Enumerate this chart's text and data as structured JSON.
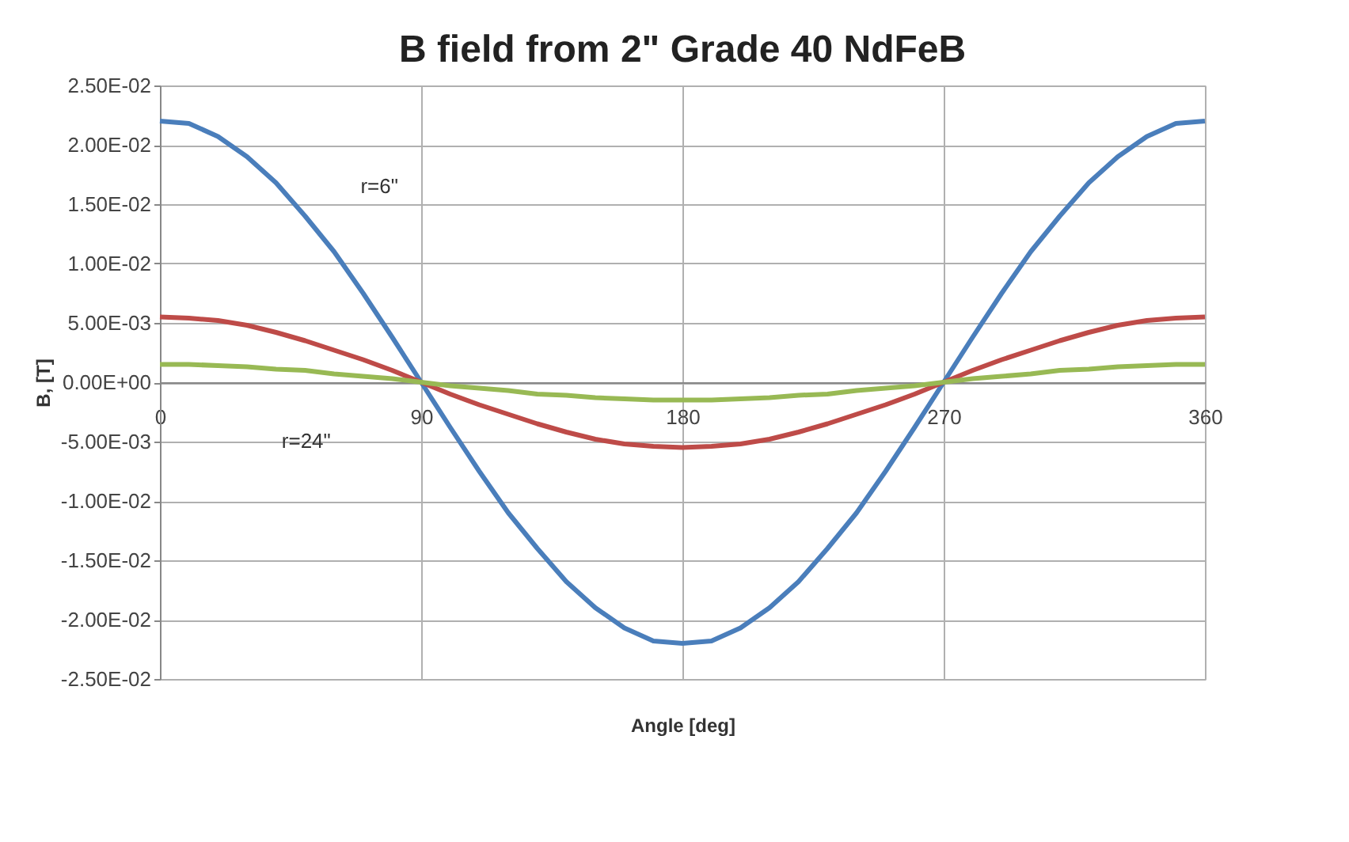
{
  "chart_data": {
    "type": "line",
    "title": "B field from 2\" Grade 40 NdFeB",
    "xlabel": "Angle [deg]",
    "ylabel": "B, [T]",
    "x": [
      0,
      10,
      20,
      30,
      40,
      50,
      60,
      70,
      80,
      90,
      100,
      110,
      120,
      130,
      140,
      150,
      160,
      170,
      180,
      190,
      200,
      210,
      220,
      230,
      240,
      250,
      260,
      270,
      280,
      290,
      300,
      310,
      320,
      330,
      340,
      350,
      360
    ],
    "series": [
      {
        "color": "#4a7ebb",
        "values": [
          0.022,
          0.0218,
          0.0207,
          0.019,
          0.0168,
          0.014,
          0.011,
          0.0075,
          0.0038,
          0,
          -0.0038,
          -0.0075,
          -0.011,
          -0.014,
          -0.0168,
          -0.019,
          -0.0207,
          -0.0218,
          -0.022,
          -0.0218,
          -0.0207,
          -0.019,
          -0.0168,
          -0.014,
          -0.011,
          -0.0075,
          -0.0038,
          0,
          0.0038,
          0.0075,
          0.011,
          0.014,
          0.0168,
          0.019,
          0.0207,
          0.0218,
          0.022
        ]
      },
      {
        "color": "#be4b48",
        "values": [
          0.0055,
          0.0054,
          0.0052,
          0.0048,
          0.0042,
          0.0035,
          0.0027,
          0.0019,
          0.001,
          0,
          -0.001,
          -0.0019,
          -0.0027,
          -0.0035,
          -0.0042,
          -0.0048,
          -0.0052,
          -0.0054,
          -0.0055,
          -0.0054,
          -0.0052,
          -0.0048,
          -0.0042,
          -0.0035,
          -0.0027,
          -0.0019,
          -0.001,
          0,
          0.001,
          0.0019,
          0.0027,
          0.0035,
          0.0042,
          0.0048,
          0.0052,
          0.0054,
          0.0055
        ]
      },
      {
        "color": "#98b954",
        "values": [
          0.0015,
          0.0015,
          0.0014,
          0.0013,
          0.0011,
          0.001,
          0.0007,
          0.0005,
          0.0003,
          0,
          -0.0003,
          -0.0005,
          -0.0007,
          -0.001,
          -0.0011,
          -0.0013,
          -0.0014,
          -0.0015,
          -0.0015,
          -0.0015,
          -0.0014,
          -0.0013,
          -0.0011,
          -0.001,
          -0.0007,
          -0.0005,
          -0.0003,
          0,
          0.0003,
          0.0005,
          0.0007,
          0.001,
          0.0011,
          0.0013,
          0.0014,
          0.0015,
          0.0015
        ]
      }
    ],
    "annotations": [
      "r=6\"",
      "r=24\""
    ],
    "xlim": [
      0,
      360
    ],
    "xticks": [
      0,
      90,
      180,
      270,
      360
    ],
    "ylim": [
      -0.025,
      0.025
    ],
    "yticks": [
      {
        "value": -0.025,
        "label": "-2.50E-02"
      },
      {
        "value": -0.02,
        "label": "-2.00E-02"
      },
      {
        "value": -0.015,
        "label": "-1.50E-02"
      },
      {
        "value": -0.01,
        "label": "-1.00E-02"
      },
      {
        "value": -0.005,
        "label": "-5.00E-03"
      },
      {
        "value": 0,
        "label": "0.00E+00"
      },
      {
        "value": 0.005,
        "label": "5.00E-03"
      },
      {
        "value": 0.01,
        "label": "1.00E-02"
      },
      {
        "value": 0.015,
        "label": "1.50E-02"
      },
      {
        "value": 0.02,
        "label": "2.00E-02"
      },
      {
        "value": 0.025,
        "label": "2.50E-02"
      }
    ],
    "grid": true,
    "legend": false,
    "marker": "none",
    "line_style": "solid"
  }
}
